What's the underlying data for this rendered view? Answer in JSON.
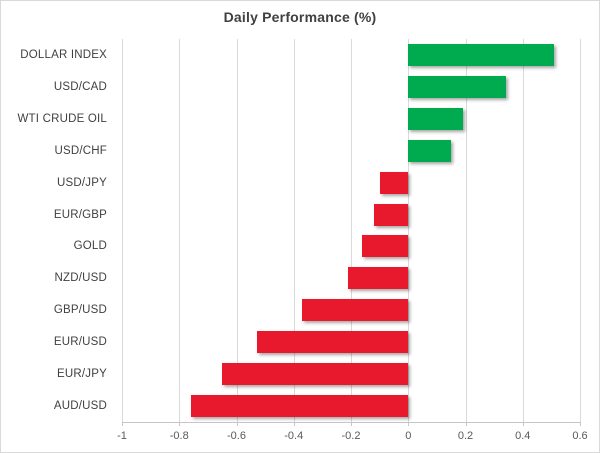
{
  "chart_data": {
    "type": "bar",
    "orientation": "horizontal",
    "title": "Daily Performance (%)",
    "categories": [
      "DOLLAR INDEX",
      "USD/CAD",
      "WTI CRUDE OIL",
      "USD/CHF",
      "USD/JPY",
      "EUR/GBP",
      "GOLD",
      "NZD/USD",
      "GBP/USD",
      "EUR/USD",
      "EUR/JPY",
      "AUD/USD"
    ],
    "values": [
      0.51,
      0.34,
      0.19,
      0.15,
      -0.1,
      -0.12,
      -0.16,
      -0.21,
      -0.37,
      -0.53,
      -0.65,
      -0.76
    ],
    "xlabel": "",
    "ylabel": "",
    "xlim": [
      -1,
      0.6
    ],
    "xtick_values": [
      -1,
      -0.8,
      -0.6,
      -0.4,
      -0.2,
      0,
      0.2,
      0.4,
      0.6
    ],
    "xtick_labels": [
      "-1",
      "-0.8",
      "-0.6",
      "-0.4",
      "-0.2",
      "0",
      "0.2",
      "0.4",
      "0.6"
    ],
    "grid": "vertical-on",
    "legend": "none",
    "colors": {
      "positive_bar": "#00ab50",
      "negative_bar": "#e8192d",
      "gridline": "#d9d9d9",
      "axis_line": "#c6c6c6",
      "tick_text": "#595959",
      "category_text": "#404040",
      "title_text": "#404040"
    }
  }
}
